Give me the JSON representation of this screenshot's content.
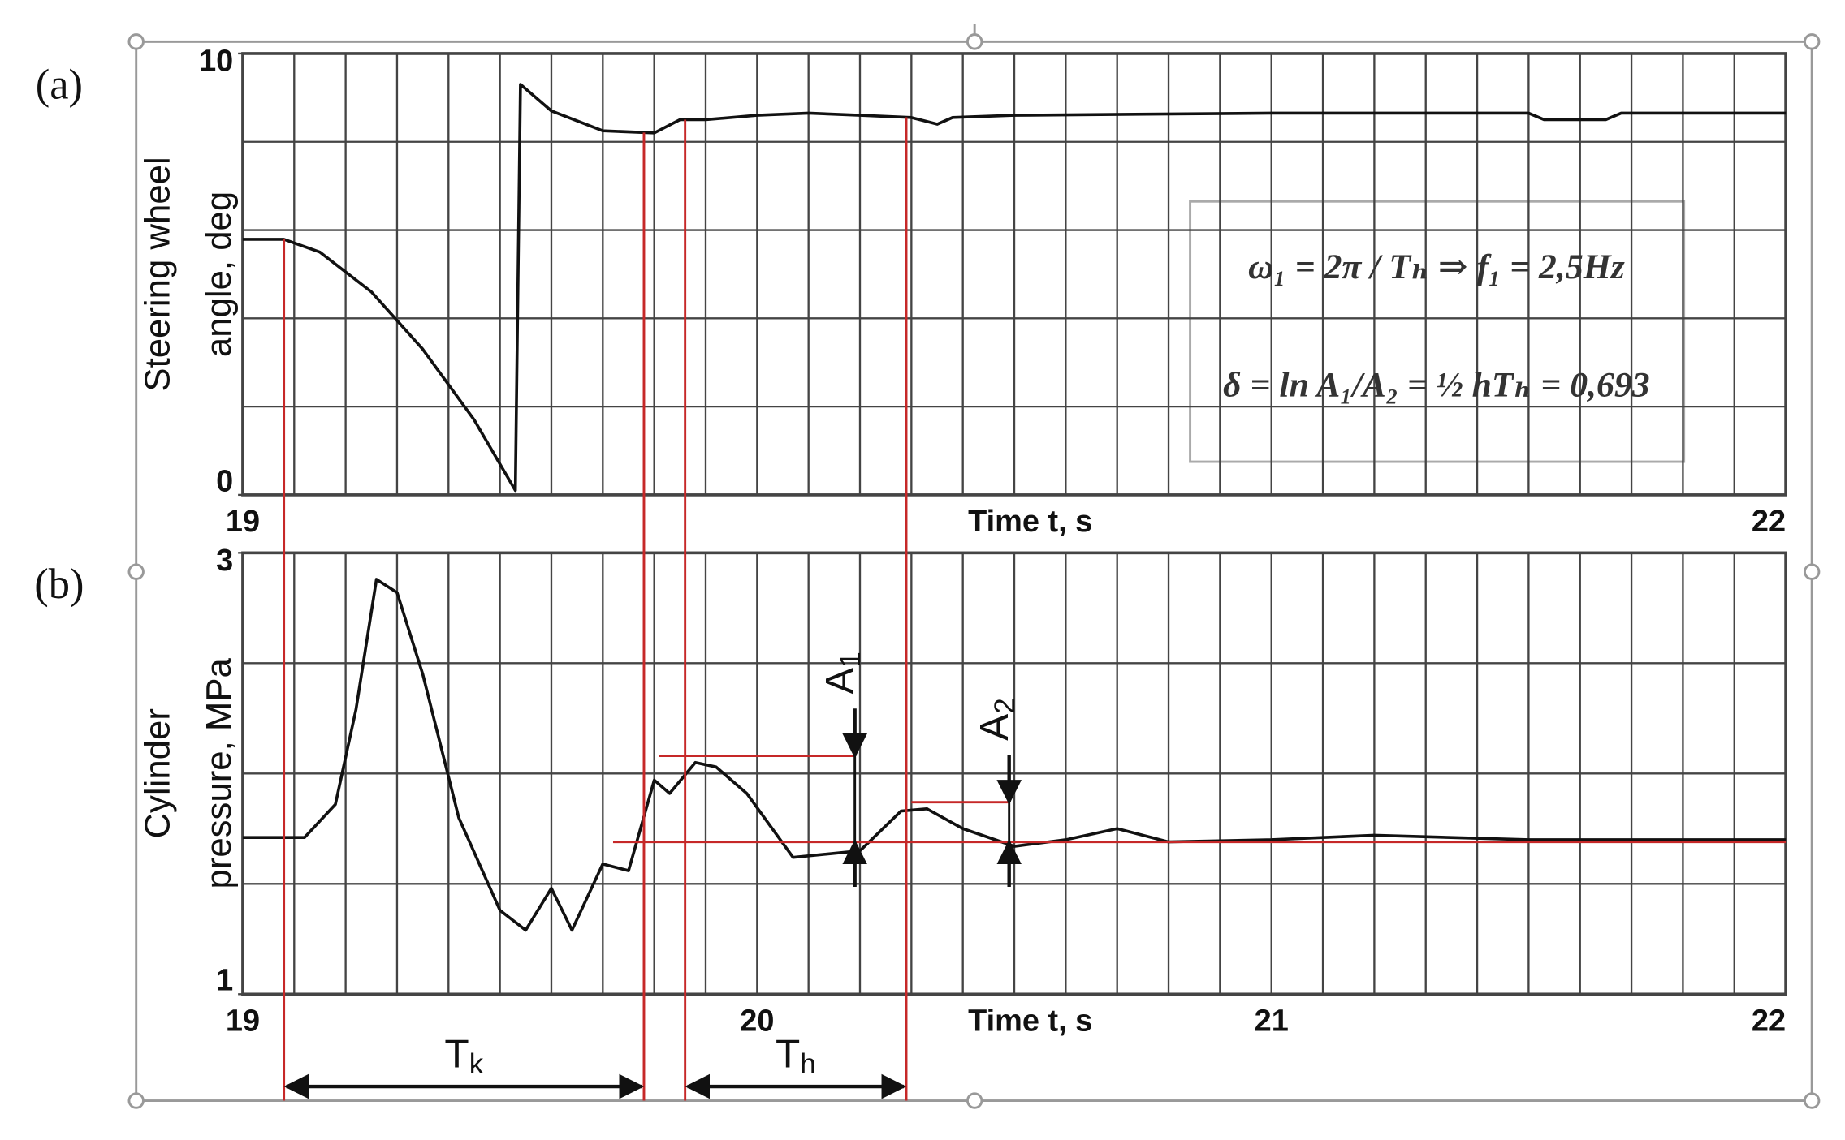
{
  "chart_data": [
    {
      "type": "line",
      "panel_label": "(a)",
      "y_label_lines": [
        "Steering wheel",
        "angle, deg"
      ],
      "x_label": "Time t, s",
      "xlim": [
        19,
        22
      ],
      "xticks": [
        19,
        22
      ],
      "ylim": [
        0,
        10
      ],
      "yticks": [
        0,
        10
      ],
      "x_gridlines": [
        19.1,
        19.2,
        19.3,
        19.4,
        19.5,
        19.6,
        19.7,
        19.8,
        19.9,
        20,
        20.1,
        20.2,
        20.3,
        20.4,
        20.5,
        20.6,
        20.7,
        20.8,
        20.9,
        21,
        21.1,
        21.2,
        21.3,
        21.4,
        21.5,
        21.6,
        21.7,
        21.8,
        21.9
      ],
      "y_gridlines": [
        2,
        4,
        6,
        8
      ],
      "color": "#111111",
      "x": [
        19.0,
        19.08,
        19.15,
        19.25,
        19.35,
        19.45,
        19.53,
        19.54,
        19.6,
        19.7,
        19.8,
        19.85,
        19.9,
        20.0,
        20.1,
        20.2,
        20.3,
        20.35,
        20.38,
        20.5,
        21.0,
        21.5,
        21.53,
        21.65,
        21.68,
        22.0
      ],
      "values": [
        5.79,
        5.79,
        5.5,
        4.6,
        3.3,
        1.7,
        0.1,
        9.3,
        8.7,
        8.25,
        8.2,
        8.5,
        8.5,
        8.6,
        8.65,
        8.6,
        8.55,
        8.4,
        8.55,
        8.6,
        8.65,
        8.65,
        8.5,
        8.5,
        8.65,
        8.65
      ],
      "formula_lines": [
        "ω₁ = 2π / Tₕ ⇒ f₁ = 2,5Hz",
        "δ = ln A₁/A₂ = ½ hTₕ = 0,693"
      ]
    },
    {
      "type": "line",
      "panel_label": "(b)",
      "y_label_lines": [
        "Cylinder",
        "pressure, MPa"
      ],
      "x_label": "Time t, s",
      "xlim": [
        19,
        22
      ],
      "xticks": [
        19,
        20,
        21,
        22
      ],
      "ylim": [
        1,
        3
      ],
      "yticks": [
        1,
        3
      ],
      "x_gridlines": [
        19.1,
        19.2,
        19.3,
        19.4,
        19.5,
        19.6,
        19.7,
        19.8,
        19.9,
        20.1,
        20.2,
        20.3,
        20.4,
        20.5,
        20.6,
        20.7,
        20.8,
        20.9,
        21.1,
        21.2,
        21.3,
        21.4,
        21.5,
        21.6,
        21.7,
        21.8,
        21.9
      ],
      "y_gridlines": [
        1.5,
        2,
        2.5
      ],
      "color": "#111111",
      "x": [
        19.0,
        19.12,
        19.18,
        19.22,
        19.26,
        19.3,
        19.35,
        19.42,
        19.5,
        19.55,
        19.6,
        19.64,
        19.7,
        19.75,
        19.8,
        19.83,
        19.88,
        19.92,
        19.98,
        20.07,
        20.2,
        20.28,
        20.33,
        20.4,
        20.5,
        20.6,
        20.7,
        20.8,
        21.0,
        21.2,
        21.5,
        22.0
      ],
      "values": [
        1.71,
        1.71,
        1.86,
        2.29,
        2.88,
        2.82,
        2.45,
        1.8,
        1.38,
        1.29,
        1.48,
        1.29,
        1.59,
        1.56,
        1.97,
        1.91,
        2.05,
        2.03,
        1.91,
        1.62,
        1.65,
        1.83,
        1.84,
        1.75,
        1.67,
        1.7,
        1.75,
        1.69,
        1.7,
        1.72,
        1.7,
        1.7
      ],
      "baseline": {
        "y": 1.69,
        "from": 19.72
      },
      "intervals": [
        {
          "main": "T",
          "sub": "k",
          "x0": 19.08,
          "x1": 19.78
        },
        {
          "main": "T",
          "sub": "h",
          "x0": 19.86,
          "x1": 20.29
        }
      ],
      "amplitudes": [
        {
          "main": "A",
          "sub": "1",
          "x": 20.19,
          "peak": 2.08,
          "peak_from": 19.81
        },
        {
          "main": "A",
          "sub": "2",
          "x": 20.49,
          "peak": 1.87,
          "peak_from": 20.3
        }
      ]
    }
  ]
}
